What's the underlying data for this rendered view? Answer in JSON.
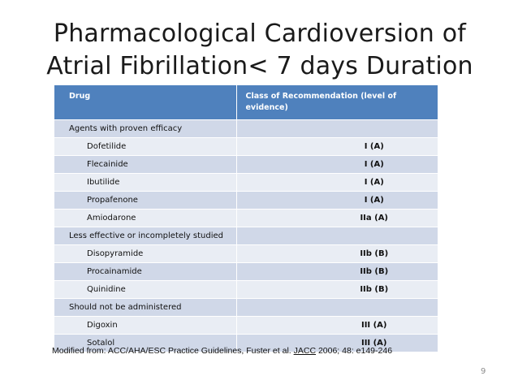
{
  "slide": {
    "title_line1": "Pharmacological Cardioversion of",
    "title_line2": "Atrial Fibrillation< 7 days Duration",
    "page_number": "9"
  },
  "table": {
    "header": {
      "drug": "Drug",
      "recommendation": "Class of Recommendation (level of evidence)"
    },
    "rows": [
      {
        "drug": "Agents with proven efficacy",
        "class": ""
      },
      {
        "drug": "Dofetilide",
        "class": "I (A)"
      },
      {
        "drug": "Flecainide",
        "class": "I (A)"
      },
      {
        "drug": "Ibutilide",
        "class": "I (A)"
      },
      {
        "drug": "Propafenone",
        "class": "I (A)"
      },
      {
        "drug": "Amiodarone",
        "class": "IIa (A)"
      },
      {
        "drug": "Less effective or incompletely studied",
        "class": ""
      },
      {
        "drug": "Disopyramide",
        "class": "IIb (B)"
      },
      {
        "drug": "Procainamide",
        "class": "IIb (B)"
      },
      {
        "drug": "Quinidine",
        "class": "IIb (B)"
      },
      {
        "drug": "Should not be administered",
        "class": ""
      },
      {
        "drug": "Digoxin",
        "class": "III (A)"
      },
      {
        "drug": "Sotalol",
        "class": "III (A)"
      }
    ]
  },
  "caption": {
    "prefix": "Modified from: ACC/AHA/ESC Practice Guidelines, Fuster et al. ",
    "journal": "JACC",
    "suffix": " 2006; 48: e149-246"
  }
}
